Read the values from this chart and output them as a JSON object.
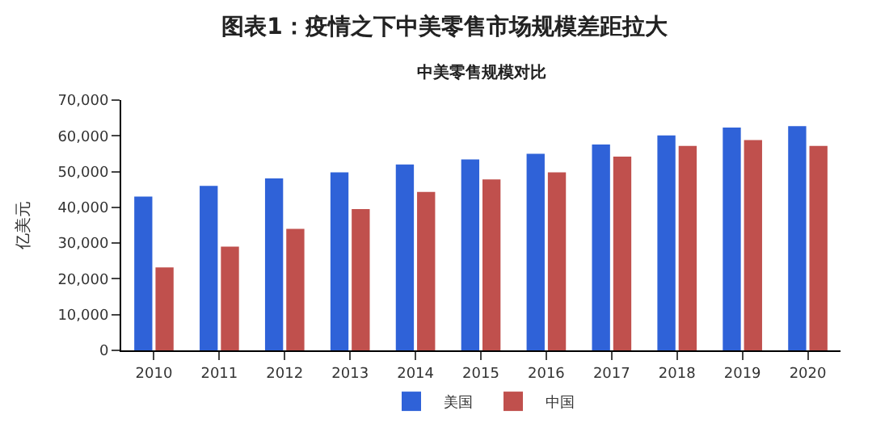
{
  "chart_data": {
    "type": "bar",
    "title": "图表1：疫情之下中美零售市场规模差距拉大",
    "subtitle": "中美零售规模对比",
    "ylabel": "亿美元",
    "categories": [
      "2010",
      "2011",
      "2012",
      "2013",
      "2014",
      "2015",
      "2016",
      "2017",
      "2018",
      "2019",
      "2020"
    ],
    "series": [
      {
        "name": "美国",
        "color": "#2f62d8",
        "values": [
          43000,
          46000,
          48100,
          49800,
          52000,
          53400,
          55000,
          57600,
          60100,
          62300,
          62700
        ]
      },
      {
        "name": "中国",
        "color": "#c0504d",
        "values": [
          23200,
          29000,
          34000,
          39500,
          44300,
          47800,
          49800,
          54200,
          57200,
          58800,
          57200
        ]
      }
    ],
    "ylim": [
      0,
      70000
    ],
    "yticks": [
      {
        "value": 0,
        "label": "0"
      },
      {
        "value": 10000,
        "label": "10,000"
      },
      {
        "value": 20000,
        "label": "20,000"
      },
      {
        "value": 30000,
        "label": "30,000"
      },
      {
        "value": 40000,
        "label": "40,000"
      },
      {
        "value": 50000,
        "label": "50,000"
      },
      {
        "value": 60000,
        "label": "60,000"
      },
      {
        "value": 70000,
        "label": "70,000"
      }
    ],
    "legend": "bottom"
  }
}
